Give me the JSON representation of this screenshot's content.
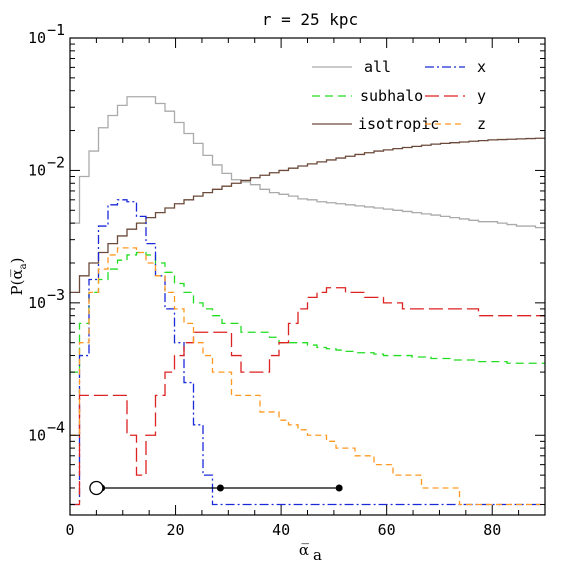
{
  "chart_data": {
    "type": "step-histogram",
    "title": "r = 25 kpc",
    "xlabel": "α̅",
    "xlabel_sub": "a",
    "ylabel": "P(α̅",
    "ylabel_sub": "a",
    "ylabel_close": ")",
    "xlim": [
      0,
      90
    ],
    "ylim": [
      2.5e-05,
      0.1
    ],
    "yscale": "log",
    "x_ticks": [
      0,
      20,
      40,
      60,
      80
    ],
    "x_tick_labels": [
      "0",
      "20",
      "40",
      "60",
      "80"
    ],
    "y_ticks": [
      0.0001,
      0.001,
      0.01,
      0.1
    ],
    "y_tick_labels": [
      {
        "base": "10",
        "exp": "−4"
      },
      {
        "base": "10",
        "exp": "−3"
      },
      {
        "base": "10",
        "exp": "−2"
      },
      {
        "base": "10",
        "exp": "−1"
      }
    ],
    "bin_width": 1.8,
    "legend": {
      "position": "top-right",
      "columns": 2
    },
    "series": [
      {
        "name": "all",
        "color": "#aaaaaa",
        "dash": "solid",
        "values": [
          0.004,
          0.009,
          0.014,
          0.021,
          0.026,
          0.031,
          0.036,
          0.036,
          0.036,
          0.032,
          0.028,
          0.023,
          0.019,
          0.016,
          0.013,
          0.011,
          0.0095,
          0.0085,
          0.0082,
          0.0078,
          0.0072,
          0.0068,
          0.0066,
          0.0064,
          0.0061,
          0.006,
          0.0058,
          0.0057,
          0.0056,
          0.0055,
          0.0054,
          0.0053,
          0.0052,
          0.0051,
          0.005,
          0.0049,
          0.0048,
          0.0047,
          0.0046,
          0.0045,
          0.0044,
          0.0043,
          0.0042,
          0.0041,
          0.0041,
          0.004,
          0.0039,
          0.0038,
          0.0038,
          0.0037
        ]
      },
      {
        "name": "subhalo",
        "color": "#22dd22",
        "dash": "8,5",
        "values": [
          0.0003,
          0.0007,
          0.0012,
          0.0015,
          0.0018,
          0.0021,
          0.0023,
          0.0024,
          0.0023,
          0.002,
          0.0017,
          0.0014,
          0.0012,
          0.001,
          0.0009,
          0.0008,
          0.0007,
          0.0007,
          0.0006,
          0.0006,
          0.0006,
          0.00055,
          0.0005,
          0.0005,
          0.0005,
          0.00048,
          0.00046,
          0.00045,
          0.00044,
          0.00043,
          0.00042,
          0.00042,
          0.00041,
          0.0004,
          0.0004,
          0.0004,
          0.00039,
          0.00039,
          0.00038,
          0.00038,
          0.00037,
          0.00037,
          0.00037,
          0.00036,
          0.00036,
          0.00036,
          0.00035,
          0.00035,
          0.00035,
          0.00035
        ]
      },
      {
        "name": "isotropic",
        "color": "#6b4a3a",
        "dash": "solid",
        "values": [
          0.0012,
          0.0016,
          0.002,
          0.0024,
          0.0028,
          0.0032,
          0.0036,
          0.004,
          0.0044,
          0.0048,
          0.0052,
          0.0056,
          0.006,
          0.0064,
          0.0068,
          0.0072,
          0.0076,
          0.008,
          0.0084,
          0.0088,
          0.0092,
          0.0096,
          0.01,
          0.0104,
          0.0108,
          0.0112,
          0.0116,
          0.012,
          0.0124,
          0.0128,
          0.0132,
          0.0136,
          0.014,
          0.0143,
          0.0146,
          0.0149,
          0.0152,
          0.0155,
          0.0158,
          0.016,
          0.0162,
          0.0164,
          0.0166,
          0.0168,
          0.017,
          0.0171,
          0.0172,
          0.0173,
          0.0174,
          0.0175
        ]
      },
      {
        "name": "x",
        "color": "#1a2ad8",
        "dash": "9,3,2,3",
        "values": [
          3e-05,
          0.0004,
          0.0015,
          0.0038,
          0.0055,
          0.006,
          0.0058,
          0.0045,
          0.0028,
          0.0016,
          0.0009,
          0.0005,
          0.00025,
          0.00012,
          5e-05,
          3e-05,
          3e-05,
          3e-05,
          3e-05,
          3e-05,
          3e-05,
          3e-05,
          3e-05,
          3e-05,
          3e-05,
          3e-05,
          3e-05,
          3e-05,
          3e-05,
          3e-05,
          3e-05,
          3e-05,
          3e-05,
          3e-05,
          3e-05,
          3e-05,
          3e-05,
          3e-05,
          3e-05,
          3e-05,
          3e-05,
          3e-05,
          3e-05,
          3e-05,
          3e-05,
          3e-05,
          3e-05,
          3e-05,
          3e-05,
          3e-05
        ]
      },
      {
        "name": "y",
        "color": "#dd2222",
        "dash": "14,5",
        "values": [
          3e-05,
          0.0002,
          0.0002,
          0.0002,
          0.0002,
          0.0002,
          0.0001,
          5e-05,
          0.0001,
          0.0002,
          0.0003,
          0.0004,
          0.0005,
          0.0006,
          0.0006,
          0.0006,
          0.0006,
          0.0004,
          0.0003,
          0.0003,
          0.0003,
          0.0004,
          0.0005,
          0.0007,
          0.0009,
          0.0011,
          0.0012,
          0.0013,
          0.0013,
          0.0012,
          0.0012,
          0.0011,
          0.0011,
          0.001,
          0.001,
          0.0009,
          0.0009,
          0.0009,
          0.0009,
          0.0009,
          0.0009,
          0.0009,
          0.0009,
          0.0008,
          0.0008,
          0.0008,
          0.0008,
          0.0008,
          0.0008,
          0.0008
        ]
      },
      {
        "name": "z",
        "color": "#ff9922",
        "dash": "6,4",
        "values": [
          0.0001,
          0.0005,
          0.0012,
          0.0018,
          0.0023,
          0.0026,
          0.0026,
          0.0024,
          0.002,
          0.0016,
          0.0012,
          0.0009,
          0.0007,
          0.0005,
          0.0004,
          0.0003,
          0.0003,
          0.0002,
          0.0002,
          0.0002,
          0.00015,
          0.00015,
          0.00013,
          0.00012,
          0.00011,
          0.0001,
          0.0001,
          9e-05,
          8e-05,
          8e-05,
          7e-05,
          7e-05,
          6e-05,
          6e-05,
          5e-05,
          5e-05,
          5e-05,
          4e-05,
          4e-05,
          4e-05,
          4e-05,
          3e-05,
          3e-05,
          3e-05,
          3e-05,
          3e-05,
          3e-05,
          3e-05,
          3e-05,
          3e-05
        ]
      }
    ],
    "marker_line": {
      "y": 4e-05,
      "x_start": 5,
      "x_end": 51,
      "points": [
        6,
        28.5,
        51
      ],
      "open_circle_x": 5
    }
  }
}
